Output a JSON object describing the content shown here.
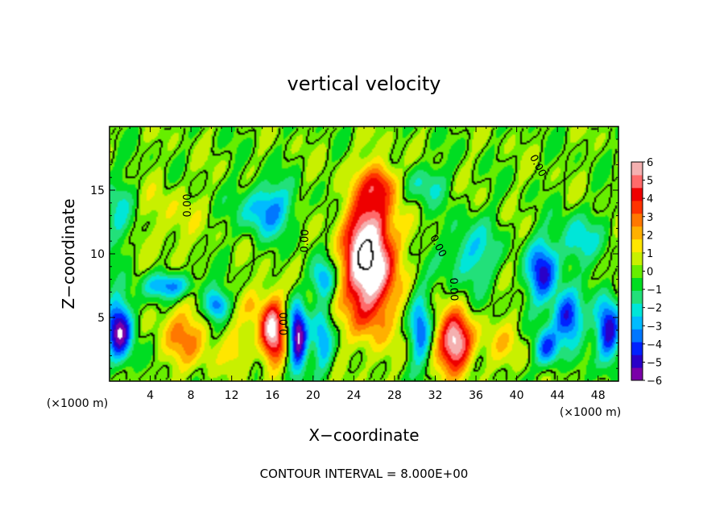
{
  "chart_data": {
    "type": "heatmap",
    "title": "vertical velocity",
    "xlabel": "X−coordinate",
    "ylabel": "Z−coordinate",
    "x_unit_left": "(×1000 m)",
    "x_unit_right": "(×1000 m)",
    "footer": "CONTOUR INTERVAL = 8.000E+00",
    "xlim": [
      0,
      50
    ],
    "ylim": [
      0,
      20
    ],
    "x_ticks": [
      4,
      8,
      12,
      16,
      20,
      24,
      28,
      32,
      36,
      40,
      44,
      48
    ],
    "x_tick_labels": [
      "4",
      "8",
      "12",
      "16",
      "20",
      "24",
      "28",
      "32",
      "36",
      "40",
      "44",
      "48"
    ],
    "y_ticks": [
      5,
      10,
      15
    ],
    "y_tick_labels": [
      "5",
      "10",
      "15"
    ],
    "contour_labels": [
      "0.00",
      "0.00",
      "0.00",
      "0.00",
      "0.00",
      "0.00"
    ],
    "colorbar": {
      "range": [
        -6,
        6
      ],
      "tick_labels": [
        "6",
        "5",
        "4",
        "3",
        "2",
        "1",
        "0",
        "−1",
        "−2",
        "−3",
        "−4",
        "−5",
        "−6"
      ],
      "colors": [
        "#7a00a8",
        "#2a00c8",
        "#0022ff",
        "#0077ff",
        "#00bbff",
        "#00e6d8",
        "#22e07a",
        "#00dd22",
        "#66ee00",
        "#c8f000",
        "#ffe600",
        "#ffb000",
        "#ff7800",
        "#ff3300",
        "#ee0000",
        "#ff6a6a",
        "#f4b0b0"
      ],
      "over_color": "#ffffff",
      "under_color": "#ffffff"
    },
    "features": [
      {
        "kind": "updraft",
        "x": 25.5,
        "z": 9.5,
        "amp": 8.5,
        "sx": 2.4,
        "sz": 5.0
      },
      {
        "kind": "updraft",
        "x": 26.8,
        "z": 15.5,
        "amp": 3.0,
        "sx": 1.6,
        "sz": 1.5
      },
      {
        "kind": "updraft",
        "x": 16.0,
        "z": 4.0,
        "amp": 6.5,
        "sx": 1.2,
        "sz": 2.6
      },
      {
        "kind": "updraft",
        "x": 34.0,
        "z": 3.0,
        "amp": 6.5,
        "sx": 1.7,
        "sz": 2.3
      },
      {
        "kind": "updraft",
        "x": 7.5,
        "z": 3.5,
        "amp": 2.5,
        "sx": 2.5,
        "sz": 2.5
      },
      {
        "kind": "updraft",
        "x": 6.0,
        "z": 12.5,
        "amp": 1.0,
        "sx": 2.5,
        "sz": 3.0
      },
      {
        "kind": "updraft",
        "x": 14.0,
        "z": 6.0,
        "amp": 1.5,
        "sx": 1.0,
        "sz": 1.5
      },
      {
        "kind": "downdraft",
        "x": 18.5,
        "z": 3.5,
        "amp": -6.5,
        "sx": 0.9,
        "sz": 2.6
      },
      {
        "kind": "downdraft",
        "x": 21.0,
        "z": 3.0,
        "amp": -3.0,
        "sx": 1.0,
        "sz": 2.5
      },
      {
        "kind": "downdraft",
        "x": 30.5,
        "z": 4.0,
        "amp": -3.5,
        "sx": 1.0,
        "sz": 3.0
      },
      {
        "kind": "downdraft",
        "x": 1.0,
        "z": 4.0,
        "amp": -6.0,
        "sx": 1.3,
        "sz": 2.5
      },
      {
        "kind": "downdraft",
        "x": 15.5,
        "z": 13.5,
        "amp": -3.5,
        "sx": 2.5,
        "sz": 2.0
      },
      {
        "kind": "downdraft",
        "x": 6.0,
        "z": 7.5,
        "amp": -3.5,
        "sx": 2.5,
        "sz": 1.0
      },
      {
        "kind": "downdraft",
        "x": 10.5,
        "z": 6.0,
        "amp": -4.0,
        "sx": 1.2,
        "sz": 1.2
      },
      {
        "kind": "downdraft",
        "x": 21.0,
        "z": 8.0,
        "amp": -3.0,
        "sx": 1.2,
        "sz": 1.5
      },
      {
        "kind": "downdraft",
        "x": 42.5,
        "z": 8.5,
        "amp": -4.5,
        "sx": 1.5,
        "sz": 2.5
      },
      {
        "kind": "downdraft",
        "x": 45.0,
        "z": 5.0,
        "amp": -5.0,
        "sx": 1.4,
        "sz": 2.0
      },
      {
        "kind": "downdraft",
        "x": 49.0,
        "z": 4.0,
        "amp": -5.5,
        "sx": 1.2,
        "sz": 2.5
      },
      {
        "kind": "downdraft",
        "x": 43.0,
        "z": 2.5,
        "amp": -4.0,
        "sx": 1.2,
        "sz": 1.5
      },
      {
        "kind": "downdraft",
        "x": 35.5,
        "z": 10.0,
        "amp": -2.5,
        "sx": 2.5,
        "sz": 2.5
      },
      {
        "kind": "downdraft",
        "x": 31.0,
        "z": 15.5,
        "amp": -2.0,
        "sx": 2.0,
        "sz": 1.5
      },
      {
        "kind": "downdraft",
        "x": 46.0,
        "z": 11.0,
        "amp": -2.5,
        "sx": 2.0,
        "sz": 2.0
      },
      {
        "kind": "downdraft",
        "x": 1.0,
        "z": 13.0,
        "amp": -1.6,
        "sx": 1.5,
        "sz": 3.0
      },
      {
        "kind": "updraft",
        "x": 12.5,
        "z": 2.5,
        "amp": 1.5,
        "sx": 1.5,
        "sz": 1.5
      },
      {
        "kind": "updraft",
        "x": 39.0,
        "z": 3.0,
        "amp": 1.2,
        "sx": 2.0,
        "sz": 2.0
      }
    ],
    "grid": false
  }
}
